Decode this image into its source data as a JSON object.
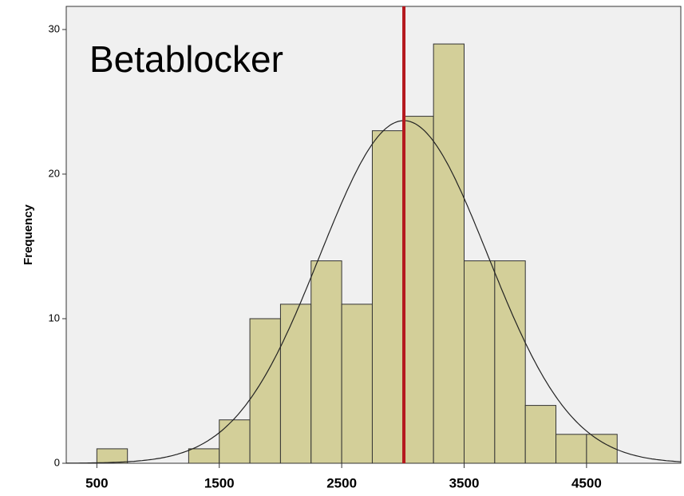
{
  "chart_data": {
    "type": "histogram",
    "annotation": "Betablocker",
    "y_label": "Frequency",
    "bins": [
      500,
      750,
      1000,
      1250,
      1500,
      1750,
      2000,
      2250,
      2500,
      2750,
      3000,
      3250,
      3500,
      3750,
      4000,
      4250,
      4500,
      4750
    ],
    "values": [
      1,
      0,
      0,
      1,
      3,
      10,
      11,
      14,
      11,
      23,
      24,
      29,
      14,
      14,
      4,
      2,
      2
    ],
    "color": "#d3cf99",
    "reference_line": {
      "value": 3008,
      "color": "#b5191e"
    },
    "normal_curve": {
      "mean": 3008,
      "std": 686
    },
    "xlim": [
      250,
      5270
    ],
    "ylim": [
      0,
      31.6
    ],
    "xticks": [
      500,
      1500,
      2500,
      3500,
      4500
    ],
    "yticks": [
      0,
      10,
      20,
      30
    ],
    "grid": false
  }
}
